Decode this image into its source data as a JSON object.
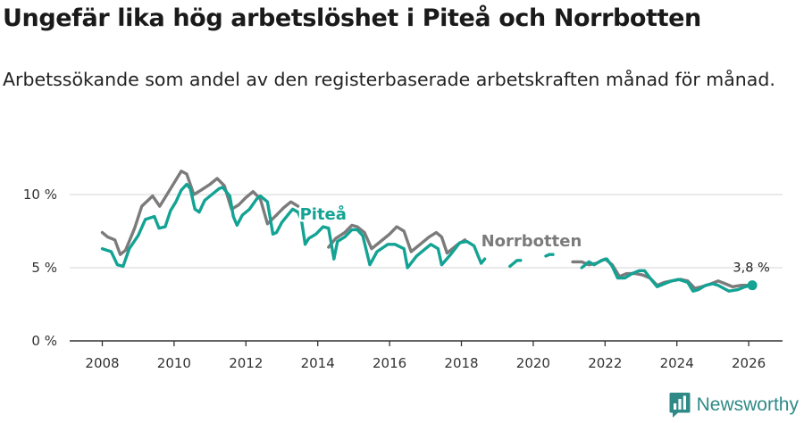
{
  "title": "Ungefär lika hög arbetslöshet i Piteå och Norrbotten",
  "subtitle": "Arbetssökande som andel av den registerbaserade arbetskraften månad för månad.",
  "brand": "Newsworthy",
  "colors": {
    "pitea": "#13a394",
    "norrbotten": "#7b7b7b",
    "grid": "#dddddd",
    "axis": "#333333"
  },
  "chart_data": {
    "type": "line",
    "title": "Ungefär lika hög arbetslöshet i Piteå och Norrbotten",
    "xlabel": "",
    "ylabel": "",
    "xlim": [
      2007.2,
      2027.0
    ],
    "ylim": [
      0,
      11.5
    ],
    "x_ticks": [
      2008,
      2010,
      2012,
      2014,
      2016,
      2018,
      2020,
      2022,
      2024,
      2026
    ],
    "y_ticks": [
      0,
      5,
      10
    ],
    "y_tick_labels": [
      "0 %",
      "5 %",
      "10 %"
    ],
    "grid": "horizontal",
    "end_label": "3,8 %",
    "series": [
      {
        "name": "Piteå",
        "label_at": [
          2013.5,
          8.3
        ],
        "points": [
          [
            2008.0,
            6.3
          ],
          [
            2008.25,
            6.1
          ],
          [
            2008.42,
            5.2
          ],
          [
            2008.58,
            5.1
          ],
          [
            2008.75,
            6.3
          ],
          [
            2009.0,
            7.2
          ],
          [
            2009.2,
            8.3
          ],
          [
            2009.45,
            8.5
          ],
          [
            2009.58,
            7.7
          ],
          [
            2009.75,
            7.8
          ],
          [
            2009.9,
            8.9
          ],
          [
            2010.05,
            9.5
          ],
          [
            2010.2,
            10.3
          ],
          [
            2010.35,
            10.7
          ],
          [
            2010.45,
            10.4
          ],
          [
            2010.58,
            9.0
          ],
          [
            2010.7,
            8.8
          ],
          [
            2010.85,
            9.6
          ],
          [
            2011.05,
            10.0
          ],
          [
            2011.25,
            10.4
          ],
          [
            2011.35,
            10.5
          ],
          [
            2011.55,
            9.9
          ],
          [
            2011.65,
            8.5
          ],
          [
            2011.75,
            7.9
          ],
          [
            2011.9,
            8.6
          ],
          [
            2012.1,
            9.0
          ],
          [
            2012.3,
            9.7
          ],
          [
            2012.4,
            9.9
          ],
          [
            2012.6,
            9.5
          ],
          [
            2012.75,
            7.3
          ],
          [
            2012.85,
            7.4
          ],
          [
            2013.0,
            8.1
          ],
          [
            2013.2,
            8.7
          ],
          [
            2013.3,
            9.0
          ],
          [
            2013.45,
            8.8
          ],
          [
            2013.55,
            8.2
          ],
          [
            2013.65,
            6.6
          ],
          [
            2013.75,
            7.0
          ],
          [
            2013.95,
            7.3
          ],
          [
            2014.15,
            7.8
          ],
          [
            2014.3,
            7.7
          ],
          [
            2014.45,
            5.6
          ],
          [
            2014.55,
            6.8
          ],
          [
            2014.75,
            7.1
          ],
          [
            2014.95,
            7.6
          ],
          [
            2015.1,
            7.6
          ],
          [
            2015.25,
            7.2
          ],
          [
            2015.45,
            5.2
          ],
          [
            2015.65,
            6.1
          ],
          [
            2015.95,
            6.6
          ],
          [
            2016.15,
            6.6
          ],
          [
            2016.4,
            6.3
          ],
          [
            2016.5,
            5.0
          ],
          [
            2016.75,
            5.8
          ],
          [
            2017.0,
            6.3
          ],
          [
            2017.15,
            6.6
          ],
          [
            2017.35,
            6.3
          ],
          [
            2017.45,
            5.2
          ],
          [
            2017.7,
            5.9
          ],
          [
            2017.95,
            6.7
          ],
          [
            2018.15,
            6.8
          ],
          [
            2018.35,
            6.5
          ],
          [
            2018.55,
            5.3
          ],
          [
            2018.65,
            5.6
          ]
        ],
        "points_2": [
          [
            2019.35,
            5.1
          ],
          [
            2019.55,
            5.5
          ],
          [
            2019.65,
            5.5
          ]
        ],
        "points_3": [
          [
            2020.35,
            5.8
          ],
          [
            2020.45,
            5.9
          ],
          [
            2020.55,
            5.9
          ]
        ],
        "points_4": [
          [
            2021.35,
            5.0
          ],
          [
            2021.55,
            5.4
          ],
          [
            2021.7,
            5.2
          ],
          [
            2021.9,
            5.5
          ],
          [
            2022.05,
            5.6
          ],
          [
            2022.2,
            5.1
          ],
          [
            2022.35,
            4.3
          ],
          [
            2022.55,
            4.3
          ],
          [
            2022.75,
            4.6
          ],
          [
            2022.95,
            4.8
          ],
          [
            2023.1,
            4.8
          ],
          [
            2023.25,
            4.3
          ],
          [
            2023.45,
            3.7
          ],
          [
            2023.65,
            3.9
          ],
          [
            2023.85,
            4.1
          ],
          [
            2024.05,
            4.2
          ],
          [
            2024.3,
            4.0
          ],
          [
            2024.45,
            3.4
          ],
          [
            2024.6,
            3.5
          ],
          [
            2024.8,
            3.8
          ],
          [
            2025.0,
            3.9
          ],
          [
            2025.15,
            3.8
          ],
          [
            2025.45,
            3.4
          ],
          [
            2025.7,
            3.5
          ],
          [
            2025.9,
            3.7
          ],
          [
            2026.1,
            3.8
          ]
        ]
      },
      {
        "name": "Norrbotten",
        "label_at": [
          2018.55,
          6.45
        ],
        "points": [
          [
            2008.0,
            7.4
          ],
          [
            2008.15,
            7.1
          ],
          [
            2008.35,
            6.9
          ],
          [
            2008.5,
            5.9
          ],
          [
            2008.65,
            6.2
          ],
          [
            2008.9,
            7.7
          ],
          [
            2009.1,
            9.2
          ],
          [
            2009.4,
            9.9
          ],
          [
            2009.6,
            9.2
          ],
          [
            2009.8,
            10.0
          ],
          [
            2010.05,
            11.0
          ],
          [
            2010.2,
            11.6
          ],
          [
            2010.35,
            11.4
          ],
          [
            2010.55,
            10.0
          ],
          [
            2010.75,
            10.3
          ],
          [
            2011.0,
            10.7
          ],
          [
            2011.2,
            11.1
          ],
          [
            2011.4,
            10.6
          ],
          [
            2011.6,
            9.0
          ],
          [
            2011.8,
            9.3
          ],
          [
            2012.0,
            9.8
          ],
          [
            2012.2,
            10.2
          ],
          [
            2012.4,
            9.7
          ],
          [
            2012.6,
            8.0
          ],
          [
            2012.85,
            8.6
          ],
          [
            2013.05,
            9.1
          ],
          [
            2013.25,
            9.5
          ],
          [
            2013.45,
            9.2
          ]
        ],
        "points_2": [
          [
            2014.3,
            6.4
          ],
          [
            2014.5,
            7.0
          ],
          [
            2014.75,
            7.4
          ],
          [
            2014.95,
            7.9
          ],
          [
            2015.1,
            7.8
          ],
          [
            2015.3,
            7.4
          ],
          [
            2015.5,
            6.3
          ],
          [
            2015.75,
            6.8
          ],
          [
            2016.0,
            7.3
          ],
          [
            2016.2,
            7.8
          ],
          [
            2016.4,
            7.5
          ],
          [
            2016.6,
            6.1
          ],
          [
            2016.85,
            6.6
          ],
          [
            2017.1,
            7.1
          ],
          [
            2017.3,
            7.4
          ],
          [
            2017.45,
            7.1
          ],
          [
            2017.6,
            6.0
          ],
          [
            2017.9,
            6.6
          ],
          [
            2018.1,
            6.9
          ]
        ],
        "points_3": [
          [
            2021.1,
            5.4
          ],
          [
            2021.35,
            5.4
          ],
          [
            2021.55,
            5.2
          ],
          [
            2021.75,
            5.3
          ],
          [
            2022.0,
            5.6
          ],
          [
            2022.2,
            5.2
          ],
          [
            2022.4,
            4.4
          ],
          [
            2022.6,
            4.6
          ],
          [
            2022.85,
            4.6
          ],
          [
            2023.05,
            4.5
          ],
          [
            2023.25,
            4.3
          ],
          [
            2023.45,
            3.8
          ],
          [
            2023.65,
            4.0
          ],
          [
            2023.85,
            4.1
          ],
          [
            2024.1,
            4.2
          ],
          [
            2024.3,
            4.1
          ],
          [
            2024.5,
            3.6
          ],
          [
            2024.7,
            3.7
          ],
          [
            2024.95,
            3.9
          ],
          [
            2025.15,
            4.1
          ],
          [
            2025.35,
            3.9
          ],
          [
            2025.55,
            3.7
          ],
          [
            2025.8,
            3.8
          ],
          [
            2026.0,
            3.8
          ],
          [
            2026.1,
            3.8
          ]
        ]
      }
    ]
  }
}
